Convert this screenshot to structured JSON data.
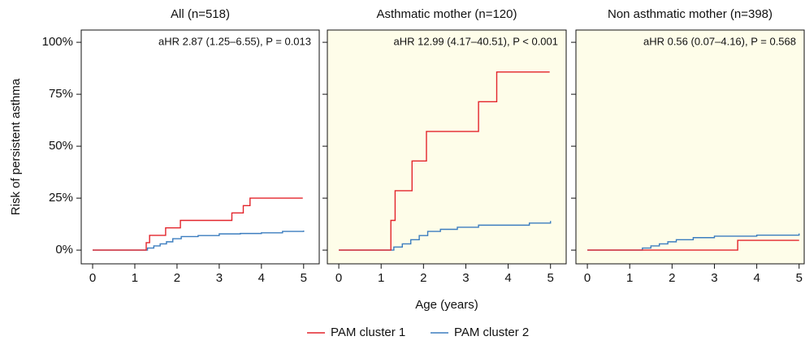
{
  "chart_data": [
    {
      "type": "step",
      "title": "All (n=518)",
      "annotation": "aHR 2.87 (1.25–6.55), P = 0.013",
      "ylabel": "Risk of persistent asthma",
      "xlim": [
        -0.27,
        5.37
      ],
      "xticks": [
        0,
        1,
        2,
        3,
        4,
        5
      ],
      "ylim": [
        -6.6,
        105.9
      ],
      "yticks": [
        {
          "value": 0,
          "label": "0%"
        },
        {
          "value": 25,
          "label": "25%"
        },
        {
          "value": 50,
          "label": "50%"
        },
        {
          "value": 75,
          "label": "75%"
        },
        {
          "value": 100,
          "label": "100%"
        }
      ],
      "background": "#ffffff",
      "show_ytick_labels": true,
      "series": [
        {
          "name": "PAM cluster 1",
          "color": "#e3242b",
          "x": [
            0,
            1.27,
            1.35,
            1.73,
            2.08,
            3.3,
            3.57,
            3.73,
            4.98
          ],
          "values": [
            0,
            3.6,
            7.1,
            10.7,
            14.3,
            17.9,
            21.4,
            25,
            25
          ]
        },
        {
          "name": "PAM cluster 2",
          "color": "#3b7dbf",
          "x": [
            0,
            1.2,
            1.3,
            1.45,
            1.6,
            1.75,
            1.9,
            2.1,
            2.5,
            3,
            3.5,
            4,
            4.5,
            5
          ],
          "values": [
            0,
            0,
            1,
            2,
            3,
            4,
            5.5,
            6.5,
            7,
            7.8,
            8,
            8.3,
            9,
            9.4
          ]
        }
      ]
    },
    {
      "type": "step",
      "title": "Asthmatic mother (n=120)",
      "annotation": "aHR 12.99 (4.17–40.51), P < 0.001",
      "xlabel": "Age (years)",
      "xlim": [
        -0.27,
        5.37
      ],
      "xticks": [
        0,
        1,
        2,
        3,
        4,
        5
      ],
      "ylim": [
        -6.6,
        105.9
      ],
      "yticks": [
        0,
        25,
        50,
        75,
        100
      ],
      "background": "#fefde9",
      "show_ytick_labels": false,
      "series": [
        {
          "name": "PAM cluster 1",
          "color": "#e3242b",
          "x": [
            0,
            1.23,
            1.33,
            1.73,
            2.07,
            3.3,
            3.73,
            4.98
          ],
          "values": [
            0,
            14.3,
            28.6,
            42.9,
            57.1,
            71.4,
            85.7,
            85.7
          ]
        },
        {
          "name": "PAM cluster 2",
          "color": "#3b7dbf",
          "x": [
            0,
            1.2,
            1.3,
            1.5,
            1.7,
            1.9,
            2.1,
            2.4,
            2.8,
            3.3,
            4,
            4.5,
            5
          ],
          "values": [
            0,
            0,
            1.5,
            3,
            5,
            7,
            9,
            10,
            11,
            12,
            12,
            13,
            14
          ]
        }
      ]
    },
    {
      "type": "step",
      "title": "Non asthmatic mother (n=398)",
      "annotation": "aHR 0.56 (0.07–4.16), P = 0.568",
      "xlim": [
        -0.27,
        5.12
      ],
      "xticks": [
        0,
        1,
        2,
        3,
        4,
        5
      ],
      "ylim": [
        -6.6,
        105.9
      ],
      "yticks": [
        0,
        25,
        50,
        75,
        100
      ],
      "background": "#fefde9",
      "show_ytick_labels": false,
      "series": [
        {
          "name": "PAM cluster 1",
          "color": "#e3242b",
          "x": [
            0,
            3.55,
            5
          ],
          "values": [
            0,
            4.7,
            4.7
          ]
        },
        {
          "name": "PAM cluster 2",
          "color": "#3b7dbf",
          "x": [
            0,
            1.1,
            1.3,
            1.5,
            1.7,
            1.9,
            2.1,
            2.5,
            3,
            4,
            5
          ],
          "values": [
            0,
            0,
            1,
            2,
            3,
            4,
            5,
            6,
            6.7,
            7.2,
            8
          ]
        }
      ]
    }
  ]
}
